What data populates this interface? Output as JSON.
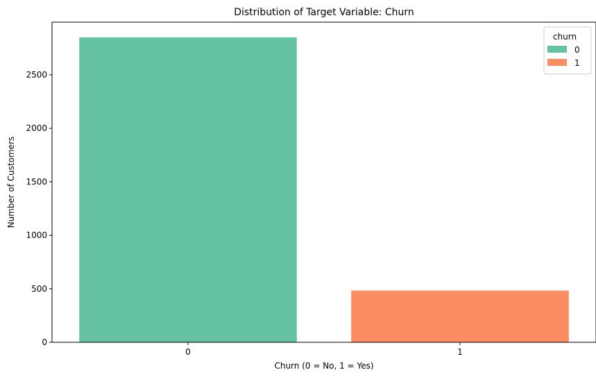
{
  "chart_data": {
    "type": "bar",
    "title": "Distribution of Target Variable: Churn",
    "xlabel": "Churn (0 = No, 1 = Yes)",
    "ylabel": "Number of Customers",
    "categories": [
      "0",
      "1"
    ],
    "values": [
      2850,
      483
    ],
    "ylim": [
      0,
      2992
    ],
    "yticks": [
      0,
      500,
      1000,
      1500,
      2000,
      2500
    ],
    "grid": false,
    "legend": {
      "title": "churn",
      "placement": "top-right",
      "entries": [
        "0",
        "1"
      ]
    },
    "colors": [
      "#66c2a5",
      "#fc8d62"
    ]
  }
}
